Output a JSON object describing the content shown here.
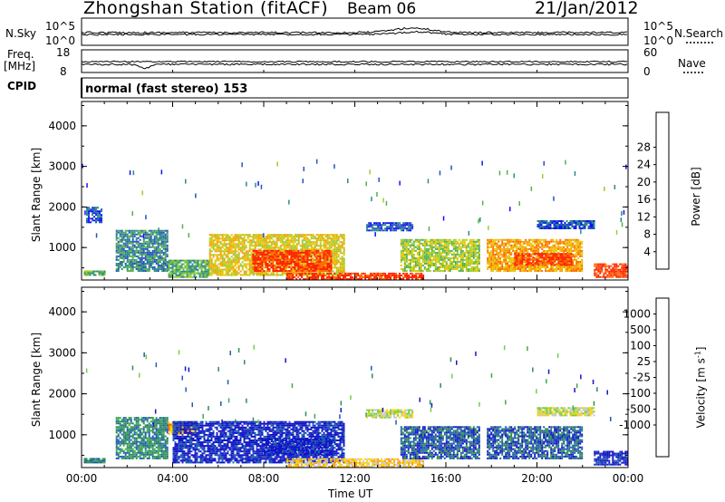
{
  "header": {
    "title": "Zhongshan Station (fitACF)",
    "beam": "Beam 06",
    "date": "21/Jan/2012"
  },
  "strip1": {
    "left_label": "N.Sky",
    "left_ticks": [
      "10^5",
      "10^0"
    ],
    "right_label": "N.Search",
    "right_ticks": [
      "10^5",
      "10^0"
    ],
    "right_legend_style": "dotted"
  },
  "strip2": {
    "left_label_lines": [
      "Freq.",
      "[MHz]"
    ],
    "left_ticks": [
      "18",
      "8"
    ],
    "right_label": "Nave",
    "right_ticks": [
      "60",
      "0"
    ],
    "right_legend_style": "dotted"
  },
  "cpid": {
    "label": "CPID",
    "text": "normal (fast stereo) 153"
  },
  "x_axis": {
    "label": "Time UT",
    "ticks": [
      "00:00",
      "04:00",
      "08:00",
      "12:00",
      "16:00",
      "20:00",
      "00:00"
    ]
  },
  "chart_data": [
    {
      "type": "heatmap",
      "quantity": "Power",
      "ylabel": "Slant Range [km]",
      "yticks": [
        1000,
        2000,
        3000,
        4000
      ],
      "ylim": [
        200,
        4600
      ],
      "xlim_hours": [
        0,
        24
      ],
      "colorbar_label": "Power [dB]",
      "colorbar_ticks": [
        "4",
        "8",
        "12",
        "16",
        "20",
        "24",
        "28"
      ],
      "colorbar_colors": [
        "#1010ff",
        "#2850c0",
        "#2a8a8a",
        "#55b050",
        "#9acd32",
        "#e6c800",
        "#f5a000",
        "#ff6a00",
        "#ff2000"
      ],
      "echo_regions": [
        {
          "t0": 0.1,
          "t1": 1.0,
          "r0": 300,
          "r1": 400,
          "level": 3
        },
        {
          "t0": 0.2,
          "t1": 0.9,
          "r0": 1600,
          "r1": 2000,
          "level": 1
        },
        {
          "t0": 1.5,
          "t1": 3.8,
          "r0": 400,
          "r1": 1400,
          "level": 2
        },
        {
          "t0": 3.8,
          "t1": 5.6,
          "r0": 250,
          "r1": 700,
          "level": 3
        },
        {
          "t0": 5.6,
          "t1": 11.5,
          "r0": 300,
          "r1": 1300,
          "level": 5
        },
        {
          "t0": 7.5,
          "t1": 11.0,
          "r0": 400,
          "r1": 900,
          "level": 8
        },
        {
          "t0": 9.0,
          "t1": 15.0,
          "r0": 200,
          "r1": 350,
          "level": 8
        },
        {
          "t0": 12.5,
          "t1": 14.5,
          "r0": 1400,
          "r1": 1600,
          "level": 1
        },
        {
          "t0": 14.0,
          "t1": 17.5,
          "r0": 400,
          "r1": 1200,
          "level": 4
        },
        {
          "t0": 17.8,
          "t1": 22.0,
          "r0": 400,
          "r1": 1200,
          "level": 6
        },
        {
          "t0": 19.0,
          "t1": 21.5,
          "r0": 550,
          "r1": 850,
          "level": 8
        },
        {
          "t0": 20.0,
          "t1": 22.5,
          "r0": 1450,
          "r1": 1650,
          "level": 1
        },
        {
          "t0": 22.5,
          "t1": 24.0,
          "r0": 250,
          "r1": 600,
          "level": 8
        }
      ]
    },
    {
      "type": "heatmap",
      "quantity": "Velocity",
      "ylabel": "Slant Range [km]",
      "yticks": [
        1000,
        2000,
        3000,
        4000
      ],
      "ylim": [
        200,
        4600
      ],
      "xlim_hours": [
        0,
        24
      ],
      "colorbar_label": "Velocity [m s^-1]",
      "colorbar_ticks": [
        "1000",
        "500",
        "100",
        "25",
        "-25",
        "-100",
        "-500",
        "-1000"
      ],
      "colorbar_colors": [
        "#1414c8",
        "#1e5ab4",
        "#2e8b57",
        "#3caa50",
        "#6fd03c",
        "#c8c8c8",
        "#ffd200",
        "#ffa000",
        "#ff6400",
        "#ff2800"
      ],
      "echo_regions": [
        {
          "t0": 0.1,
          "t1": 1.0,
          "r0": 300,
          "r1": 400,
          "level": 2
        },
        {
          "t0": 1.5,
          "t1": 3.8,
          "r0": 400,
          "r1": 1400,
          "level": 2
        },
        {
          "t0": 3.8,
          "t1": 5.0,
          "r0": 1000,
          "r1": 1300,
          "level": 7
        },
        {
          "t0": 4.0,
          "t1": 11.5,
          "r0": 300,
          "r1": 1300,
          "level": 0
        },
        {
          "t0": 8.0,
          "t1": 11.0,
          "r0": 500,
          "r1": 900,
          "level": 0
        },
        {
          "t0": 9.0,
          "t1": 15.0,
          "r0": 200,
          "r1": 400,
          "level": 6
        },
        {
          "t0": 12.5,
          "t1": 14.5,
          "r0": 1400,
          "r1": 1600,
          "level": 5
        },
        {
          "t0": 14.0,
          "t1": 17.5,
          "r0": 400,
          "r1": 1200,
          "level": 1
        },
        {
          "t0": 17.8,
          "t1": 22.0,
          "r0": 400,
          "r1": 1200,
          "level": 1
        },
        {
          "t0": 20.0,
          "t1": 22.5,
          "r0": 1450,
          "r1": 1650,
          "level": 5
        },
        {
          "t0": 22.5,
          "t1": 24.0,
          "r0": 250,
          "r1": 600,
          "level": 0
        }
      ]
    }
  ]
}
